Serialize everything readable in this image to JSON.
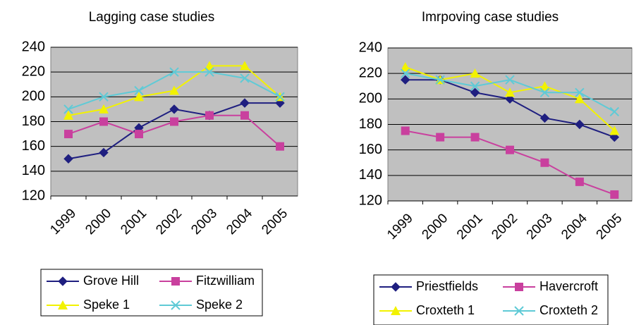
{
  "chart_data": [
    {
      "type": "line",
      "title": "Lagging case studies",
      "categories": [
        "1999",
        "2000",
        "2001",
        "2002",
        "2003",
        "2004",
        "2005"
      ],
      "ylim": [
        120,
        240
      ],
      "yticks": [
        120,
        140,
        160,
        180,
        200,
        220,
        240
      ],
      "grid": true,
      "series": [
        {
          "name": "Grove Hill",
          "color": "#1f1f80",
          "marker": "diamond",
          "values": [
            150,
            155,
            175,
            190,
            185,
            195,
            195
          ]
        },
        {
          "name": "Fitzwilliam",
          "color": "#c9409e",
          "marker": "square",
          "values": [
            170,
            180,
            170,
            180,
            185,
            185,
            160
          ]
        },
        {
          "name": "Speke 1",
          "color": "#f2f200",
          "marker": "triangle",
          "values": [
            185,
            190,
            200,
            205,
            225,
            225,
            200
          ]
        },
        {
          "name": "Speke 2",
          "color": "#5fcad6",
          "marker": "x",
          "values": [
            190,
            200,
            205,
            220,
            220,
            215,
            200
          ]
        }
      ]
    },
    {
      "type": "line",
      "title": "Imrpoving case studies",
      "categories": [
        "1999",
        "2000",
        "2001",
        "2002",
        "2003",
        "2004",
        "2005"
      ],
      "ylim": [
        120,
        240
      ],
      "yticks": [
        120,
        140,
        160,
        180,
        200,
        220,
        240
      ],
      "grid": true,
      "series": [
        {
          "name": "Priestfields",
          "color": "#1f1f80",
          "marker": "diamond",
          "values": [
            215,
            215,
            205,
            200,
            185,
            180,
            170
          ]
        },
        {
          "name": "Havercroft",
          "color": "#c9409e",
          "marker": "square",
          "values": [
            175,
            170,
            170,
            160,
            150,
            135,
            125
          ]
        },
        {
          "name": "Croxteth 1",
          "color": "#f2f200",
          "marker": "triangle",
          "values": [
            225,
            215,
            220,
            205,
            210,
            200,
            175
          ]
        },
        {
          "name": "Croxteth 2",
          "color": "#5fcad6",
          "marker": "x",
          "values": [
            220,
            215,
            210,
            215,
            205,
            205,
            190
          ]
        }
      ]
    }
  ]
}
